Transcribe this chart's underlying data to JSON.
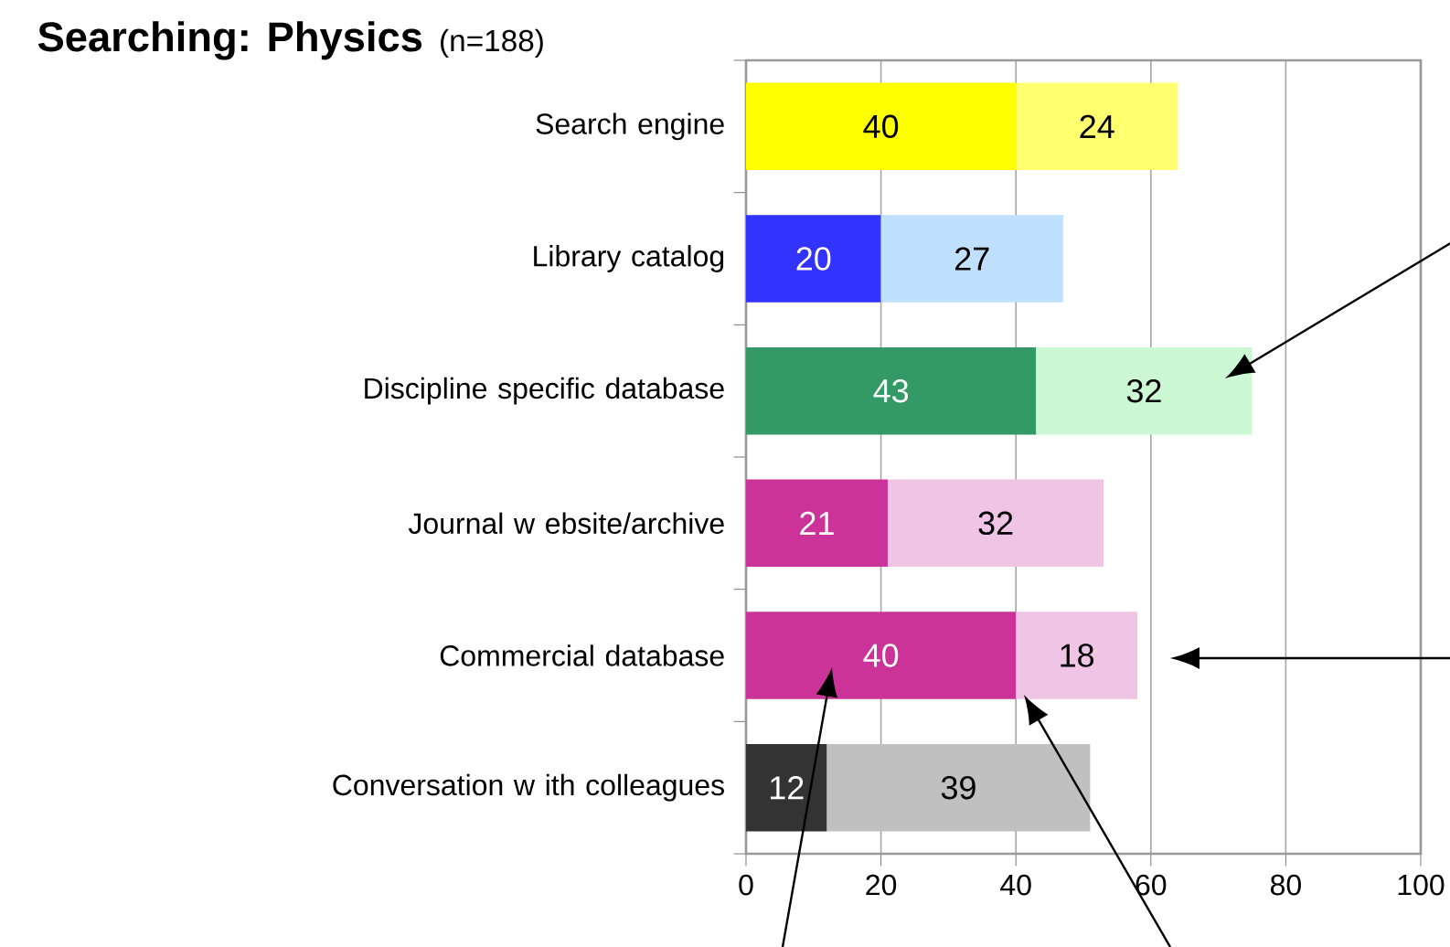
{
  "chart_data": {
    "type": "bar",
    "orientation": "horizontal",
    "stacked": true,
    "title": "Searching: Physics",
    "subtitle": "(n=188)",
    "categories": [
      "Search engine",
      "Library catalog",
      "Discipline specific database",
      "Journal w ebsite/archive",
      "Commercial database",
      "Conversation w ith colleagues"
    ],
    "series": [
      {
        "colors": [
          "#ffff00",
          "#3333ff",
          "#339966",
          "#cc3399",
          "#cc3399",
          "#333333"
        ],
        "values": [
          40,
          20,
          43,
          21,
          40,
          12
        ]
      },
      {
        "colors": [
          "#ffff70",
          "#c0e0ff",
          "#ccf8d4",
          "#f0c4e4",
          "#f0c4e4",
          "#c0c0c0"
        ],
        "values": [
          24,
          27,
          32,
          32,
          18,
          39
        ]
      }
    ],
    "xlim": [
      0,
      100
    ],
    "xticks": [
      0,
      20,
      40,
      60,
      80,
      100
    ],
    "grid": "x",
    "data_labels": true
  }
}
